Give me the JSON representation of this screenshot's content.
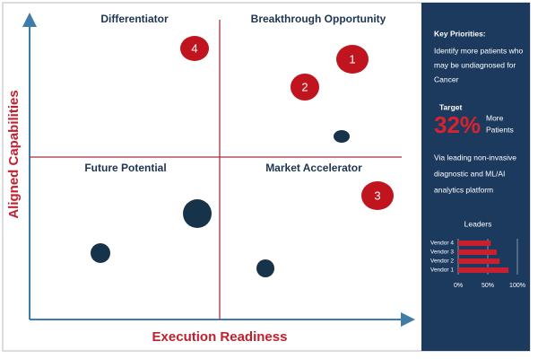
{
  "quadrants": {
    "top_left": "Differentiator",
    "top_right": "Breakthrough Opportunity",
    "bottom_left": "Future Potential",
    "bottom_right": "Market Accelerator"
  },
  "axes": {
    "y_title": "Aligned  Capabilities",
    "x_title": "Execution Readiness"
  },
  "bubbles": [
    "1",
    "2",
    "3",
    "4"
  ],
  "sidebar": {
    "heading": "Key Priorities:",
    "priority_lines": [
      "Identify more patients who",
      "may be undiagnosed for",
      "Cancer"
    ],
    "target_label": "Target",
    "target_value": "32%",
    "target_suffix_lines": [
      "More",
      "Patients"
    ],
    "description_lines": [
      "Via leading non-invasive",
      "diagnostic and ML/AI",
      "analytics platform"
    ]
  },
  "chart_data": {
    "type": "bar",
    "orientation": "horizontal",
    "title": "Leaders",
    "categories": [
      "Vendor 4",
      "Vendor 3",
      "Vendor 2",
      "Vendor 1"
    ],
    "values": [
      55,
      65,
      70,
      85
    ],
    "color": "#c8202f",
    "xlim": [
      0,
      100
    ],
    "xticks": [
      {
        "value": 0,
        "label": "0%"
      },
      {
        "value": 50,
        "label": "50%"
      },
      {
        "value": 100,
        "label": "100%"
      }
    ]
  }
}
